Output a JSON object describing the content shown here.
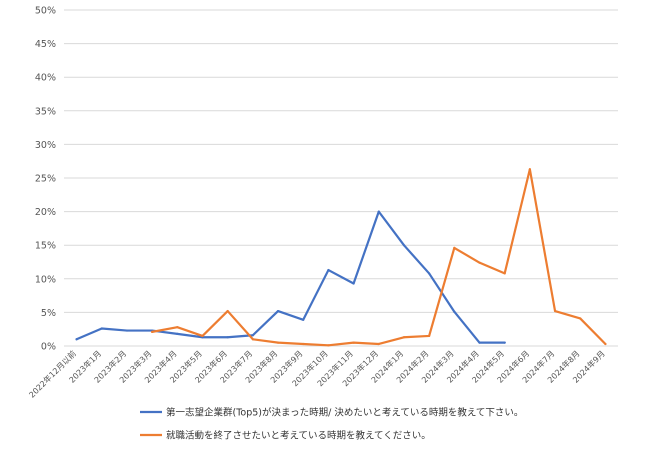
{
  "chart_data": {
    "type": "line",
    "x": [
      "2022年12月以前",
      "2023年1月",
      "2023年2月",
      "2023年3月",
      "2023年4月",
      "2023年5月",
      "2023年6月",
      "2023年7月",
      "2023年8月",
      "2023年9月",
      "2023年10月",
      "2023年11月",
      "2023年12月",
      "2024年1月",
      "2024年2月",
      "2024年3月",
      "2024年4月",
      "2024年5月",
      "2024年6月",
      "2024年7月",
      "2024年8月",
      "2024年9月"
    ],
    "ylim": [
      0,
      50
    ],
    "yticks": [
      "0%",
      "5%",
      "10%",
      "15%",
      "20%",
      "25%",
      "30%",
      "35%",
      "40%",
      "45%",
      "50%"
    ],
    "grid": true,
    "legend_position": "bottom",
    "series": [
      {
        "name": "第一志望企業群(Top5)が決まった時期/ 決めたいと考えている時期を教えて下さい。",
        "color": "#4472c4",
        "values": [
          1.0,
          2.6,
          2.3,
          2.3,
          1.8,
          1.3,
          1.3,
          1.6,
          5.2,
          3.9,
          11.3,
          9.3,
          20.0,
          15.0,
          10.8,
          5.1,
          0.5,
          0.5,
          null,
          null,
          null,
          null
        ]
      },
      {
        "name": "就職活動を終了させたいと考えている時期を教えてください。",
        "color": "#ed7d31",
        "values": [
          null,
          null,
          null,
          2.1,
          2.8,
          1.5,
          5.2,
          1.0,
          0.5,
          0.3,
          0.1,
          0.5,
          0.3,
          1.3,
          1.5,
          14.6,
          12.4,
          10.8,
          26.3,
          5.2,
          4.1,
          0.3
        ]
      }
    ]
  }
}
